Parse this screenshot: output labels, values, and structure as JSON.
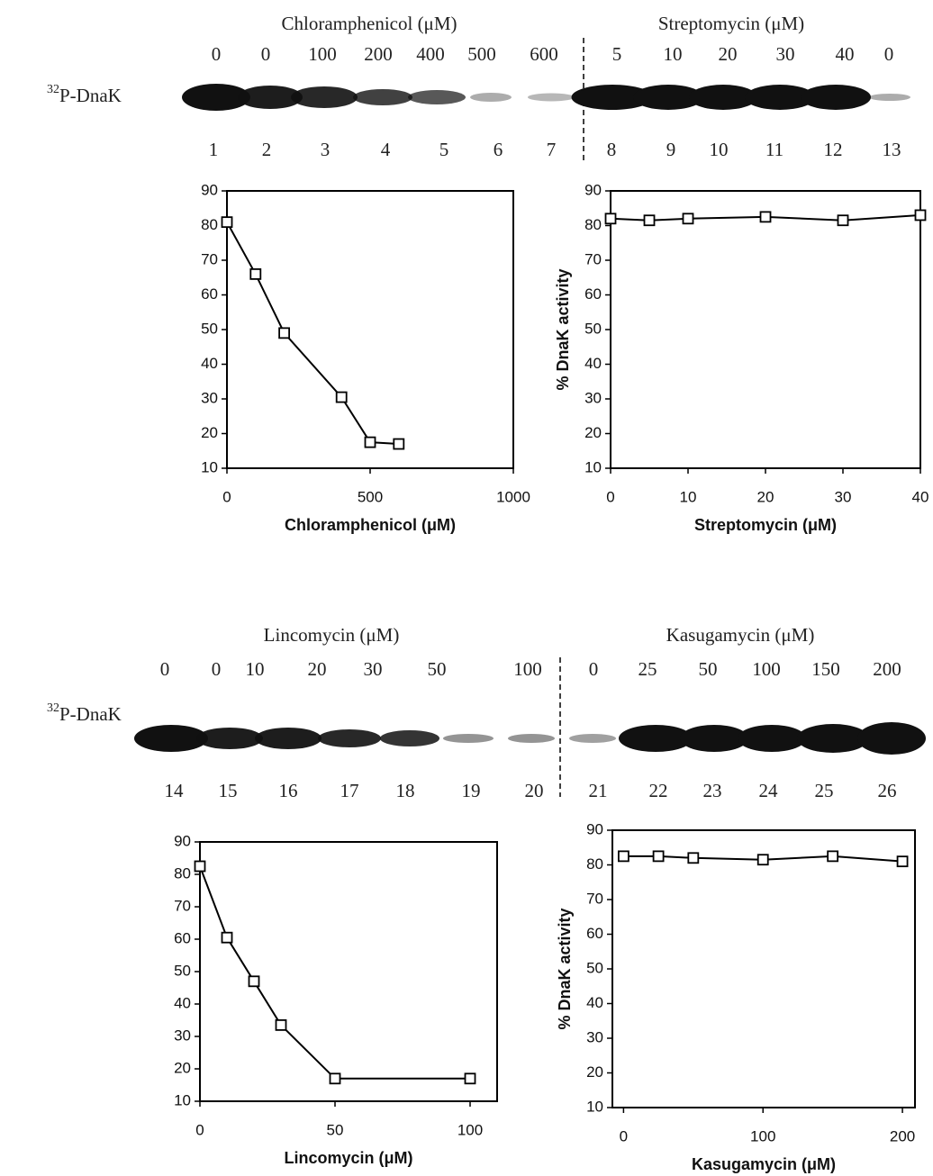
{
  "gels": [
    {
      "label_superscript": "32",
      "label": "P-DnaK",
      "groups": [
        {
          "title": "Chloramphenicol (μM)",
          "concentrations": [
            0,
            0,
            100,
            200,
            400,
            500,
            600
          ]
        },
        {
          "title": "Streptomycin (μM)",
          "concentrations": [
            5,
            10,
            20,
            30,
            40,
            0
          ]
        }
      ],
      "lane_numbers": [
        1,
        2,
        3,
        4,
        5,
        6,
        7,
        8,
        9,
        10,
        11,
        12,
        13
      ]
    },
    {
      "label_superscript": "32",
      "label": "P-DnaK",
      "groups": [
        {
          "title": "Lincomycin (μM)",
          "concentrations": [
            0,
            0,
            10,
            20,
            30,
            50,
            100
          ]
        },
        {
          "title": "Kasugamycin (μM)",
          "concentrations": [
            0,
            25,
            50,
            100,
            150,
            200
          ]
        }
      ],
      "lane_numbers": [
        14,
        15,
        16,
        17,
        18,
        19,
        20,
        21,
        22,
        23,
        24,
        25,
        26
      ]
    }
  ],
  "chart_data": [
    {
      "type": "line",
      "x_label": "Chloramphenicol (μM)",
      "x": [
        0,
        100,
        200,
        400,
        500,
        600
      ],
      "values": [
        81,
        66,
        49,
        30.5,
        17.5,
        17
      ],
      "color": "#000000",
      "xlim": [
        0,
        1000
      ],
      "xticks": [
        0,
        500,
        1000
      ],
      "ylim": [
        10,
        90
      ],
      "yticks": [
        10,
        20,
        30,
        40,
        50,
        60,
        70,
        80,
        90
      ]
    },
    {
      "type": "line",
      "x_label": "Streptomycin (μM)",
      "y_label": "% DnaK activity",
      "x": [
        0,
        5,
        10,
        20,
        30,
        40
      ],
      "values": [
        82,
        81.5,
        82,
        82.5,
        81.5,
        83
      ],
      "color": "#000000",
      "xlim": [
        0,
        40
      ],
      "xticks": [
        0,
        10,
        20,
        30,
        40
      ],
      "ylim": [
        10,
        90
      ],
      "yticks": [
        10,
        20,
        30,
        40,
        50,
        60,
        70,
        80,
        90
      ]
    },
    {
      "type": "line",
      "x_label": "Lincomycin (μM)",
      "x": [
        0,
        10,
        20,
        30,
        50,
        100
      ],
      "values": [
        82.5,
        60.5,
        47,
        33.5,
        17,
        17
      ],
      "color": "#000000",
      "xlim": [
        0,
        110
      ],
      "xticks": [
        0,
        50,
        100
      ],
      "ylim": [
        10,
        90
      ],
      "yticks": [
        10,
        20,
        30,
        40,
        50,
        60,
        70,
        80,
        90
      ]
    },
    {
      "type": "line",
      "x_label": "Kasugamycin (μM)",
      "y_label": "% DnaK activity",
      "x": [
        0,
        25,
        50,
        100,
        150,
        200
      ],
      "values": [
        82.5,
        82.5,
        82,
        81.5,
        82.5,
        81
      ],
      "color": "#000000",
      "xlim": [
        -8,
        209
      ],
      "xticks": [
        0,
        100,
        200
      ],
      "ylim": [
        10,
        90
      ],
      "yticks": [
        10,
        20,
        30,
        40,
        50,
        60,
        70,
        80,
        90
      ]
    }
  ]
}
